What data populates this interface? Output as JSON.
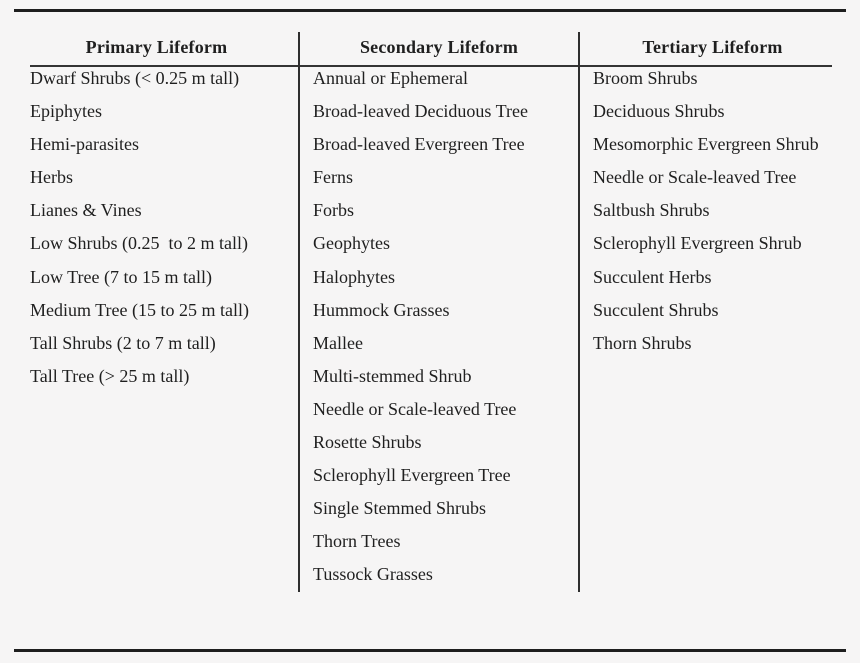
{
  "table": {
    "columns": [
      {
        "header": "Primary Lifeform",
        "items": [
          "Dwarf Shrubs (< 0.25 m tall)",
          "Epiphytes",
          "Hemi-parasites",
          "Herbs",
          "Lianes & Vines",
          "Low Shrubs (0.25  to 2 m tall)",
          "Low Tree (7 to 15 m tall)",
          "Medium Tree (15 to 25 m tall)",
          "Tall Shrubs (2 to 7 m tall)",
          "Tall Tree (> 25 m tall)"
        ]
      },
      {
        "header": "Secondary Lifeform",
        "items": [
          "Annual or Ephemeral",
          "Broad-leaved Deciduous Tree",
          "Broad-leaved Evergreen Tree",
          "Ferns",
          "Forbs",
          "Geophytes",
          "Halophytes",
          "Hummock Grasses",
          "Mallee",
          "Multi-stemmed Shrub",
          "Needle or Scale-leaved Tree",
          "Rosette Shrubs",
          "Sclerophyll Evergreen Tree",
          "Single Stemmed Shrubs",
          "Thorn Trees",
          "Tussock Grasses"
        ]
      },
      {
        "header": "Tertiary Lifeform",
        "items": [
          "Broom Shrubs",
          "Deciduous Shrubs",
          "Mesomorphic Evergreen Shrub",
          "Needle or Scale-leaved Tree",
          "Saltbush Shrubs",
          "Sclerophyll Evergreen Shrub",
          "Succulent Herbs",
          "Succulent Shrubs",
          "Thorn Shrubs"
        ]
      }
    ]
  },
  "colors": {
    "background": "#f6f5f5",
    "text": "#1f1f1f",
    "rule": "#1e1e1e"
  }
}
